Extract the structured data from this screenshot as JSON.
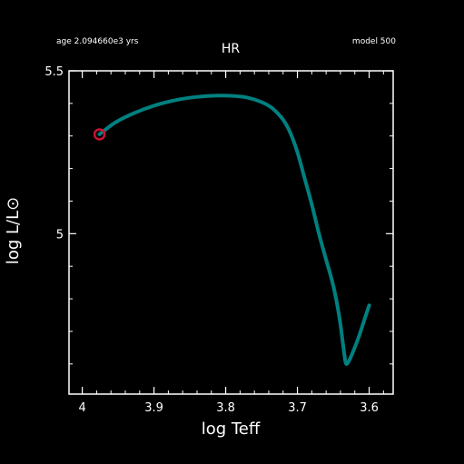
{
  "header": {
    "age_label": "age 2.094660e3 yrs",
    "model_label": "model 500"
  },
  "chart_data": {
    "type": "line",
    "title": "HR",
    "xlabel": "log Teff",
    "ylabel": "log L/L⊙",
    "xlim": [
      4.0185,
      3.5665
    ],
    "ylim": [
      4.5075,
      5.5
    ],
    "x_reversed": true,
    "grid": false,
    "x_ticks": [
      4,
      3.9,
      3.8,
      3.7,
      3.6
    ],
    "x_tick_labels": [
      "4",
      "3.9",
      "3.8",
      "3.7",
      "3.6"
    ],
    "y_ticks": [
      5.5,
      5
    ],
    "y_tick_labels": [
      "5.5",
      "5"
    ],
    "series": [
      {
        "color": "#008080",
        "x": [
          3.976,
          3.955,
          3.93,
          3.9,
          3.87,
          3.84,
          3.81,
          3.79,
          3.77,
          3.75,
          3.735,
          3.72,
          3.71,
          3.7,
          3.69,
          3.68,
          3.67,
          3.66,
          3.65,
          3.642,
          3.637,
          3.634,
          3.632,
          3.628,
          3.622,
          3.615,
          3.606,
          3.6
        ],
        "y": [
          5.305,
          5.34,
          5.368,
          5.393,
          5.41,
          5.42,
          5.424,
          5.423,
          5.418,
          5.404,
          5.385,
          5.35,
          5.31,
          5.25,
          5.17,
          5.09,
          5.0,
          4.92,
          4.84,
          4.75,
          4.67,
          4.62,
          4.6,
          4.61,
          4.64,
          4.68,
          4.74,
          4.78
        ]
      }
    ],
    "marker": {
      "x": 3.976,
      "y": 5.305,
      "color": "#cc1133",
      "shape": "open-circle"
    }
  }
}
